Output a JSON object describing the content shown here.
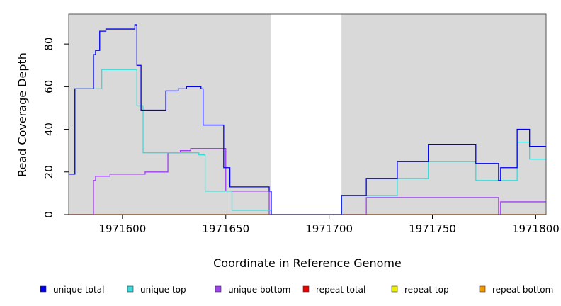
{
  "chart_data": {
    "type": "line",
    "xlabel": "Coordinate in Reference Genome",
    "ylabel": "Read Coverage Depth",
    "xlim": [
      1971574,
      1971805
    ],
    "ylim": [
      0,
      94
    ],
    "x_ticks": [
      1971600,
      1971650,
      1971700,
      1971750,
      1971800
    ],
    "x_tick_labels": [
      "1971600",
      "1971650",
      "1971700",
      "1971750",
      "1971800"
    ],
    "y_ticks": [
      0,
      20,
      40,
      60,
      80
    ],
    "y_tick_labels": [
      "0",
      "20",
      "40",
      "60",
      "80"
    ],
    "background_regions": [
      {
        "x0": 1971574,
        "x1": 1971672,
        "color": "#d9d9d9"
      },
      {
        "x0": 1971706,
        "x1": 1971805,
        "color": "#d9d9d9"
      }
    ],
    "legend_position": "bottom",
    "series": [
      {
        "name": "unique total",
        "color": "#0000ee",
        "points": [
          [
            1971574,
            19
          ],
          [
            1971577,
            19
          ],
          [
            1971577,
            59
          ],
          [
            1971586,
            59
          ],
          [
            1971586,
            75
          ],
          [
            1971587,
            75
          ],
          [
            1971587,
            77
          ],
          [
            1971589,
            77
          ],
          [
            1971589,
            86
          ],
          [
            1971592,
            86
          ],
          [
            1971592,
            87
          ],
          [
            1971606,
            87
          ],
          [
            1971606,
            89
          ],
          [
            1971607,
            89
          ],
          [
            1971607,
            70
          ],
          [
            1971609,
            70
          ],
          [
            1971609,
            49
          ],
          [
            1971621,
            49
          ],
          [
            1971621,
            58
          ],
          [
            1971627,
            58
          ],
          [
            1971627,
            59
          ],
          [
            1971631,
            59
          ],
          [
            1971631,
            60
          ],
          [
            1971638,
            60
          ],
          [
            1971638,
            59
          ],
          [
            1971639,
            59
          ],
          [
            1971639,
            42
          ],
          [
            1971649,
            42
          ],
          [
            1971649,
            22
          ],
          [
            1971652,
            22
          ],
          [
            1971652,
            13
          ],
          [
            1971671,
            13
          ],
          [
            1971671,
            11
          ],
          [
            1971672,
            11
          ],
          [
            1971672,
            0
          ],
          [
            1971706,
            0
          ],
          [
            1971706,
            9
          ],
          [
            1971718,
            9
          ],
          [
            1971718,
            17
          ],
          [
            1971733,
            17
          ],
          [
            1971733,
            25
          ],
          [
            1971748,
            25
          ],
          [
            1971748,
            33
          ],
          [
            1971771,
            33
          ],
          [
            1971771,
            24
          ],
          [
            1971782,
            24
          ],
          [
            1971782,
            16
          ],
          [
            1971783,
            16
          ],
          [
            1971783,
            22
          ],
          [
            1971791,
            22
          ],
          [
            1971791,
            40
          ],
          [
            1971797,
            40
          ],
          [
            1971797,
            32
          ],
          [
            1971805,
            32
          ]
        ]
      },
      {
        "name": "unique top",
        "color": "#33dddd",
        "points": [
          [
            1971574,
            19
          ],
          [
            1971577,
            19
          ],
          [
            1971577,
            59
          ],
          [
            1971590,
            59
          ],
          [
            1971590,
            68
          ],
          [
            1971607,
            68
          ],
          [
            1971607,
            51
          ],
          [
            1971610,
            51
          ],
          [
            1971610,
            29
          ],
          [
            1971637,
            29
          ],
          [
            1971637,
            28
          ],
          [
            1971640,
            28
          ],
          [
            1971640,
            11
          ],
          [
            1971653,
            11
          ],
          [
            1971653,
            2
          ],
          [
            1971672,
            2
          ],
          [
            1971672,
            0
          ],
          [
            1971706,
            0
          ],
          [
            1971706,
            9
          ],
          [
            1971733,
            9
          ],
          [
            1971733,
            17
          ],
          [
            1971748,
            17
          ],
          [
            1971748,
            25
          ],
          [
            1971771,
            25
          ],
          [
            1971771,
            16
          ],
          [
            1971791,
            16
          ],
          [
            1971791,
            34
          ],
          [
            1971797,
            34
          ],
          [
            1971797,
            26
          ],
          [
            1971805,
            26
          ]
        ]
      },
      {
        "name": "unique bottom",
        "color": "#a040f0",
        "points": [
          [
            1971574,
            0
          ],
          [
            1971586,
            0
          ],
          [
            1971586,
            16
          ],
          [
            1971587,
            16
          ],
          [
            1971587,
            18
          ],
          [
            1971594,
            18
          ],
          [
            1971594,
            19
          ],
          [
            1971611,
            19
          ],
          [
            1971611,
            20
          ],
          [
            1971622,
            20
          ],
          [
            1971622,
            29
          ],
          [
            1971628,
            29
          ],
          [
            1971628,
            30
          ],
          [
            1971633,
            30
          ],
          [
            1971633,
            31
          ],
          [
            1971650,
            31
          ],
          [
            1971650,
            11
          ],
          [
            1971671,
            11
          ],
          [
            1971671,
            0
          ],
          [
            1971718,
            0
          ],
          [
            1971718,
            8
          ],
          [
            1971782,
            8
          ],
          [
            1971782,
            0
          ],
          [
            1971783,
            0
          ],
          [
            1971783,
            6
          ],
          [
            1971805,
            6
          ]
        ]
      },
      {
        "name": "repeat total",
        "color": "#ee0000",
        "points": [
          [
            1971574,
            0
          ],
          [
            1971805,
            0
          ]
        ]
      },
      {
        "name": "repeat top",
        "color": "#eeee00",
        "points": [
          [
            1971574,
            0
          ],
          [
            1971805,
            0
          ]
        ]
      },
      {
        "name": "repeat bottom",
        "color": "#ee9a00",
        "points": [
          [
            1971574,
            0
          ],
          [
            1971805,
            0
          ]
        ]
      }
    ]
  }
}
